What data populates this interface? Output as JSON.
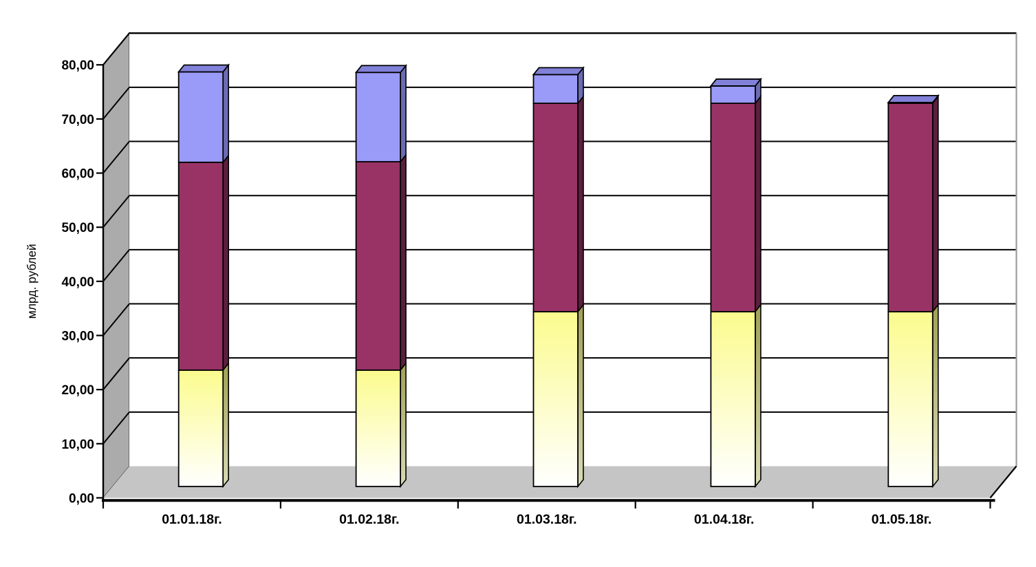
{
  "chart_data": {
    "type": "bar",
    "stacked": true,
    "projection": "3d",
    "title": "",
    "ylabel": "млрд. рублей",
    "xlabel": "",
    "ylim": [
      0,
      80
    ],
    "ytick_step": 10,
    "ytick_labels": [
      "0,00",
      "10,00",
      "20,00",
      "30,00",
      "40,00",
      "50,00",
      "60,00",
      "70,00",
      "80,00"
    ],
    "grid": true,
    "legend": "none",
    "categories": [
      "01.01.18г.",
      "01.02.18г.",
      "01.03.18г.",
      "01.04.18г.",
      "01.05.18г."
    ],
    "series": [
      {
        "id": "bottom-yellow-segment",
        "values": [
          21.5,
          21.5,
          32.3,
          32.3,
          32.3
        ],
        "color_front_top": "#FBFB8E",
        "color_front_bottom": "#FFFFFF",
        "color_side_top": "#A0A055",
        "color_side_bottom": "#DADAB4"
      },
      {
        "id": "middle-maroon-segment",
        "values": [
          38.4,
          38.5,
          38.5,
          38.5,
          38.5
        ],
        "color_front": "#993366",
        "color_side": "#5C1F3E"
      },
      {
        "id": "top-blue-segment",
        "values": [
          16.7,
          16.5,
          5.3,
          3.2,
          0.15
        ],
        "color_front": "#9A9AF8",
        "color_side": "#6C6CB4",
        "color_top": "#8181DA"
      }
    ],
    "totals": [
      76.6,
      76.5,
      76.1,
      74.0,
      70.95
    ],
    "colors": {
      "side_wall": "#ABABAB",
      "floor": "#C5C5C5",
      "back_wall": "#FFFFFF",
      "gridline": "#000000",
      "wall_right_edge": "#9C9C9C",
      "axis": "#000000",
      "text": "#000000"
    }
  }
}
